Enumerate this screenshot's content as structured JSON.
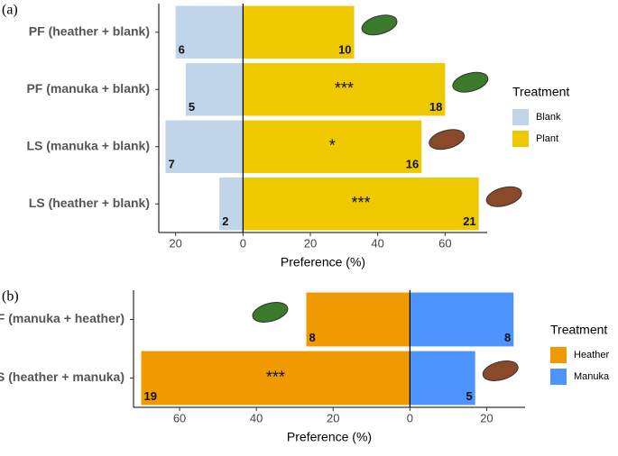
{
  "chart_data": [
    {
      "type": "bar",
      "orientation": "horizontal",
      "panel_label": "(a)",
      "categories": [
        "PF (heather + blank)",
        "PF (manuka + blank)",
        "LS (manuka + blank)",
        "LS (heather + blank)"
      ],
      "series": [
        {
          "name": "Blank",
          "color": "#c0d4ea",
          "values": [
            -20,
            -17,
            -23,
            -7
          ],
          "counts": [
            6,
            5,
            7,
            2
          ]
        },
        {
          "name": "Plant",
          "color": "#eec900",
          "values": [
            33,
            60,
            53,
            70
          ],
          "counts": [
            10,
            18,
            16,
            21
          ]
        }
      ],
      "significance": [
        null,
        "***",
        "*",
        "***"
      ],
      "xlabel": "Preference (%)",
      "xlim": [
        -25,
        72.5
      ],
      "xticks": [
        {
          "value": -20,
          "label": "20"
        },
        0,
        20,
        40,
        60
      ],
      "legend_title": "Treatment",
      "legend": "right"
    },
    {
      "type": "bar",
      "orientation": "horizontal",
      "panel_label": "(b)",
      "categories": [
        "PF (manuka + heather)",
        "LS (heather + manuka)"
      ],
      "series": [
        {
          "name": "Heather",
          "color": "#ee9a00",
          "values": [
            -27,
            -70
          ],
          "counts": [
            8,
            19
          ]
        },
        {
          "name": "Manuka",
          "color": "#4d94ff",
          "values": [
            27,
            17
          ],
          "counts": [
            8,
            5
          ]
        }
      ],
      "significance": [
        null,
        "***"
      ],
      "xlabel": "Preference (%)",
      "xlim": [
        -72,
        30
      ],
      "xticks": [
        {
          "value": -60,
          "label": "60"
        },
        {
          "value": -40,
          "label": "40"
        },
        {
          "value": -20,
          "label": "20"
        },
        0,
        20
      ],
      "legend_title": "Treatment",
      "legend": "right"
    }
  ]
}
